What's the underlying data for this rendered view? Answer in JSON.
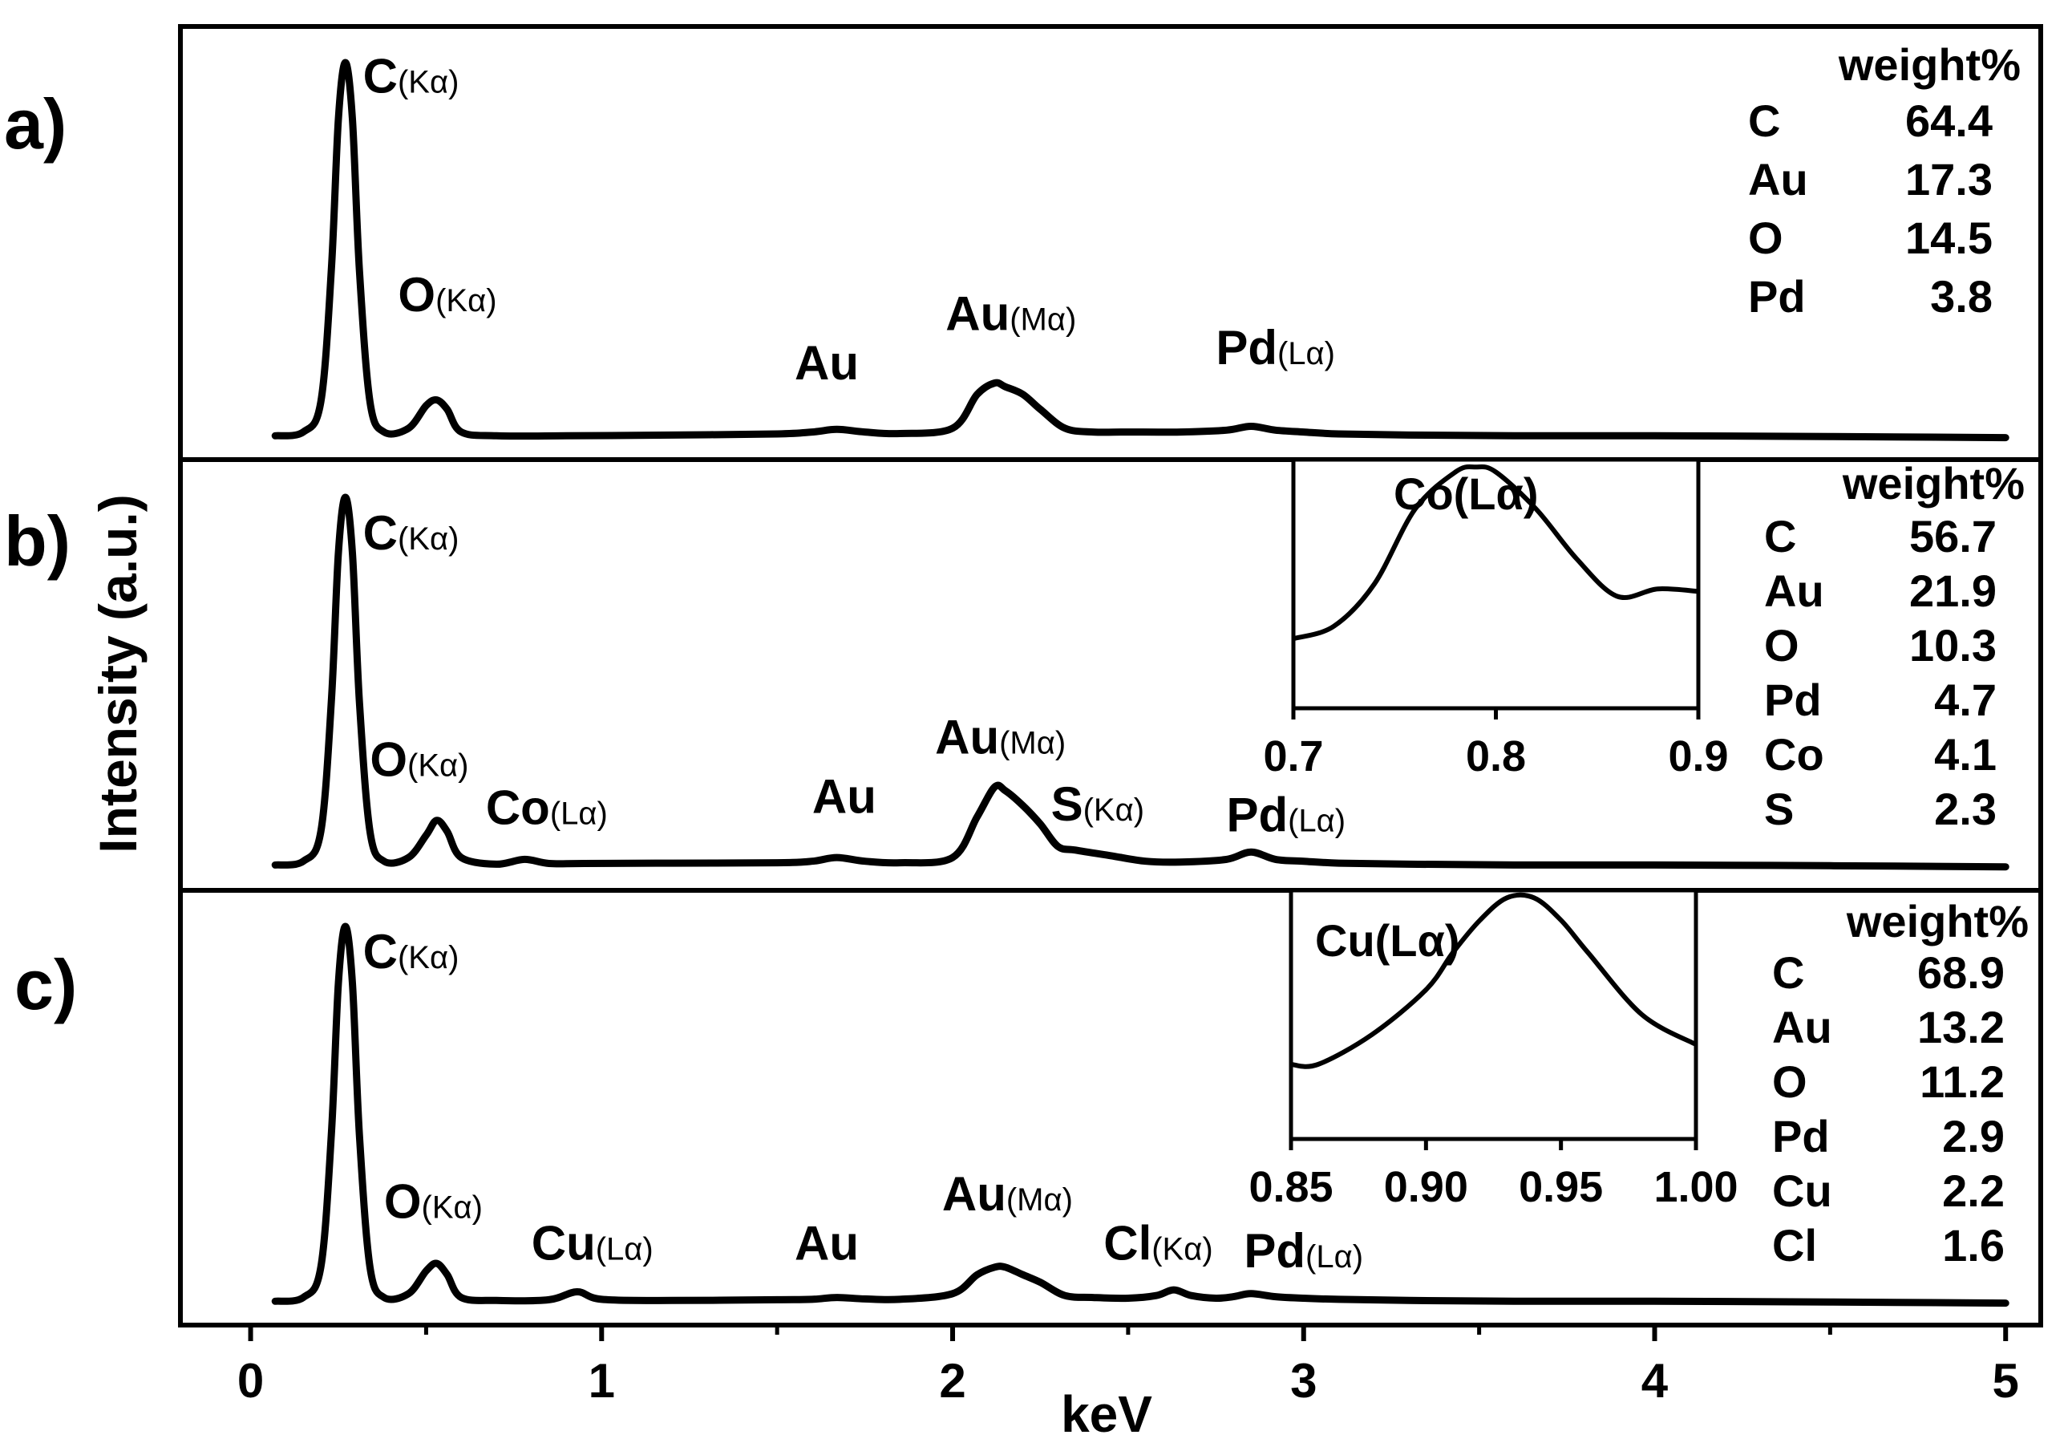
{
  "figure": {
    "ylabel": "Intensity (a.u.)",
    "xlabel": "keV",
    "xticks": [
      "0",
      "1",
      "2",
      "3",
      "4",
      "5"
    ],
    "xlim": [
      -0.2,
      5.1
    ]
  },
  "chart_data": [
    {
      "type": "line",
      "panel": "a)",
      "xlabel": "keV",
      "ylabel": "Intensity (a.u.)",
      "xlim": [
        -0.2,
        5.1
      ],
      "ylim": [
        0,
        1.05
      ],
      "series": [
        {
          "x": [
            0.07,
            0.15,
            0.2,
            0.23,
            0.25,
            0.27,
            0.29,
            0.31,
            0.34,
            0.38,
            0.45,
            0.5,
            0.53,
            0.56,
            0.6,
            0.7,
            0.9,
            1.2,
            1.5,
            1.6,
            1.67,
            1.75,
            1.85,
            2.0,
            2.07,
            2.12,
            2.15,
            2.2,
            2.25,
            2.32,
            2.4,
            2.5,
            2.65,
            2.78,
            2.85,
            2.92,
            3.0,
            3.1,
            3.3,
            3.6,
            4.0,
            4.5,
            5.0
          ],
          "y": [
            0.01,
            0.02,
            0.1,
            0.45,
            0.85,
            1.0,
            0.85,
            0.45,
            0.1,
            0.02,
            0.03,
            0.09,
            0.105,
            0.08,
            0.02,
            0.01,
            0.01,
            0.012,
            0.015,
            0.02,
            0.027,
            0.02,
            0.016,
            0.03,
            0.12,
            0.15,
            0.14,
            0.12,
            0.08,
            0.03,
            0.02,
            0.02,
            0.02,
            0.025,
            0.035,
            0.025,
            0.02,
            0.015,
            0.012,
            0.01,
            0.01,
            0.008,
            0.005
          ]
        }
      ],
      "annotations": [
        {
          "element": "C",
          "line": "K",
          "x": 0.32,
          "y": 0.92
        },
        {
          "element": "O",
          "line": "K",
          "x": 0.42,
          "y": 0.34
        },
        {
          "element": "Au",
          "line": "",
          "x": 1.55,
          "y": 0.16
        },
        {
          "element": "Au",
          "line": "M",
          "x": 1.98,
          "y": 0.29
        },
        {
          "element": "Pd",
          "line": "L",
          "x": 2.75,
          "y": 0.2
        }
      ],
      "table": {
        "header": "weight%",
        "rows": [
          {
            "element": "C",
            "value": "64.4"
          },
          {
            "element": "Au",
            "value": "17.3"
          },
          {
            "element": "O",
            "value": "14.5"
          },
          {
            "element": "Pd",
            "value": "3.8"
          }
        ]
      }
    },
    {
      "type": "line",
      "panel": "b)",
      "xlabel": "keV",
      "ylabel": "Intensity (a.u.)",
      "xlim": [
        -0.2,
        5.1
      ],
      "ylim": [
        0,
        1.05
      ],
      "series": [
        {
          "x": [
            0.07,
            0.15,
            0.2,
            0.23,
            0.25,
            0.27,
            0.29,
            0.31,
            0.34,
            0.38,
            0.45,
            0.5,
            0.53,
            0.56,
            0.6,
            0.7,
            0.78,
            0.85,
            0.95,
            1.2,
            1.5,
            1.6,
            1.67,
            1.75,
            1.85,
            2.0,
            2.07,
            2.12,
            2.15,
            2.2,
            2.25,
            2.3,
            2.35,
            2.45,
            2.55,
            2.65,
            2.78,
            2.85,
            2.92,
            3.0,
            3.1,
            3.3,
            3.6,
            4.0,
            4.5,
            5.0
          ],
          "y": [
            0.01,
            0.02,
            0.1,
            0.45,
            0.85,
            1.0,
            0.85,
            0.45,
            0.1,
            0.02,
            0.03,
            0.09,
            0.13,
            0.1,
            0.03,
            0.012,
            0.025,
            0.014,
            0.014,
            0.015,
            0.016,
            0.02,
            0.03,
            0.02,
            0.016,
            0.03,
            0.14,
            0.22,
            0.21,
            0.17,
            0.12,
            0.06,
            0.05,
            0.035,
            0.02,
            0.018,
            0.025,
            0.045,
            0.025,
            0.02,
            0.015,
            0.012,
            0.01,
            0.01,
            0.008,
            0.005
          ]
        }
      ],
      "annotations": [
        {
          "element": "C",
          "line": "K",
          "x": 0.32,
          "y": 0.86
        },
        {
          "element": "O",
          "line": "K",
          "x": 0.34,
          "y": 0.25
        },
        {
          "element": "Co",
          "line": "L",
          "x": 0.67,
          "y": 0.12
        },
        {
          "element": "Au",
          "line": "",
          "x": 1.6,
          "y": 0.15
        },
        {
          "element": "Au",
          "line": "M",
          "x": 1.95,
          "y": 0.31
        },
        {
          "element": "S",
          "line": "K",
          "x": 2.28,
          "y": 0.13
        },
        {
          "element": "Pd",
          "line": "L",
          "x": 2.78,
          "y": 0.1
        }
      ],
      "inset": {
        "label": "Co(Lα)",
        "xlim": [
          0.7,
          0.9
        ],
        "xticks": [
          "0.7",
          "0.8",
          "0.9"
        ],
        "x": [
          0.7,
          0.72,
          0.74,
          0.76,
          0.78,
          0.79,
          0.8,
          0.82,
          0.84,
          0.86,
          0.88,
          0.9
        ],
        "y": [
          0.28,
          0.33,
          0.5,
          0.8,
          0.95,
          0.97,
          0.95,
          0.8,
          0.6,
          0.45,
          0.48,
          0.47
        ]
      },
      "table": {
        "header": "weight%",
        "rows": [
          {
            "element": "C",
            "value": "56.7"
          },
          {
            "element": "Au",
            "value": "21.9"
          },
          {
            "element": "O",
            "value": "10.3"
          },
          {
            "element": "Pd",
            "value": "4.7"
          },
          {
            "element": "Co",
            "value": "4.1"
          },
          {
            "element": "S",
            "value": "2.3"
          }
        ]
      }
    },
    {
      "type": "line",
      "panel": "c)",
      "xlabel": "keV",
      "ylabel": "Intensity (a.u.)",
      "xlim": [
        -0.2,
        5.1
      ],
      "ylim": [
        0,
        1.05
      ],
      "series": [
        {
          "x": [
            0.07,
            0.15,
            0.2,
            0.23,
            0.25,
            0.27,
            0.29,
            0.31,
            0.34,
            0.38,
            0.45,
            0.5,
            0.53,
            0.56,
            0.6,
            0.7,
            0.85,
            0.93,
            1.0,
            1.2,
            1.5,
            1.6,
            1.67,
            1.75,
            1.85,
            2.0,
            2.07,
            2.12,
            2.15,
            2.2,
            2.25,
            2.32,
            2.4,
            2.5,
            2.58,
            2.63,
            2.68,
            2.75,
            2.8,
            2.85,
            2.92,
            3.0,
            3.1,
            3.3,
            3.6,
            4.0,
            4.5,
            5.0
          ],
          "y": [
            0.01,
            0.02,
            0.1,
            0.45,
            0.85,
            1.0,
            0.85,
            0.45,
            0.1,
            0.02,
            0.03,
            0.09,
            0.11,
            0.08,
            0.02,
            0.012,
            0.014,
            0.035,
            0.015,
            0.012,
            0.014,
            0.015,
            0.02,
            0.016,
            0.015,
            0.03,
            0.08,
            0.1,
            0.1,
            0.08,
            0.06,
            0.025,
            0.02,
            0.018,
            0.025,
            0.04,
            0.025,
            0.018,
            0.022,
            0.03,
            0.022,
            0.018,
            0.015,
            0.012,
            0.01,
            0.01,
            0.008,
            0.005
          ]
        }
      ],
      "annotations": [
        {
          "element": "C",
          "line": "K",
          "x": 0.32,
          "y": 0.89
        },
        {
          "element": "O",
          "line": "K",
          "x": 0.38,
          "y": 0.23
        },
        {
          "element": "Cu",
          "line": "L",
          "x": 0.8,
          "y": 0.12
        },
        {
          "element": "Au",
          "line": "",
          "x": 1.55,
          "y": 0.12
        },
        {
          "element": "Au",
          "line": "M",
          "x": 1.97,
          "y": 0.25
        },
        {
          "element": "Cl",
          "line": "K",
          "x": 2.43,
          "y": 0.12
        },
        {
          "element": "Pd",
          "line": "L",
          "x": 2.83,
          "y": 0.1
        }
      ],
      "inset": {
        "label": "Cu(Lα)",
        "xlim": [
          0.85,
          1.0
        ],
        "xticks": [
          "0.85",
          "0.90",
          "0.95",
          "1.00"
        ],
        "x": [
          0.85,
          0.86,
          0.88,
          0.9,
          0.91,
          0.92,
          0.93,
          0.94,
          0.95,
          0.96,
          0.98,
          1.0
        ],
        "y": [
          0.3,
          0.3,
          0.42,
          0.6,
          0.75,
          0.88,
          0.97,
          0.97,
          0.88,
          0.75,
          0.5,
          0.38
        ]
      },
      "table": {
        "header": "weight%",
        "rows": [
          {
            "element": "C",
            "value": "68.9"
          },
          {
            "element": "Au",
            "value": "13.2"
          },
          {
            "element": "O",
            "value": "11.2"
          },
          {
            "element": "Pd",
            "value": "2.9"
          },
          {
            "element": "Cu",
            "value": "2.2"
          },
          {
            "element": "Cl",
            "value": "1.6"
          }
        ]
      }
    }
  ]
}
